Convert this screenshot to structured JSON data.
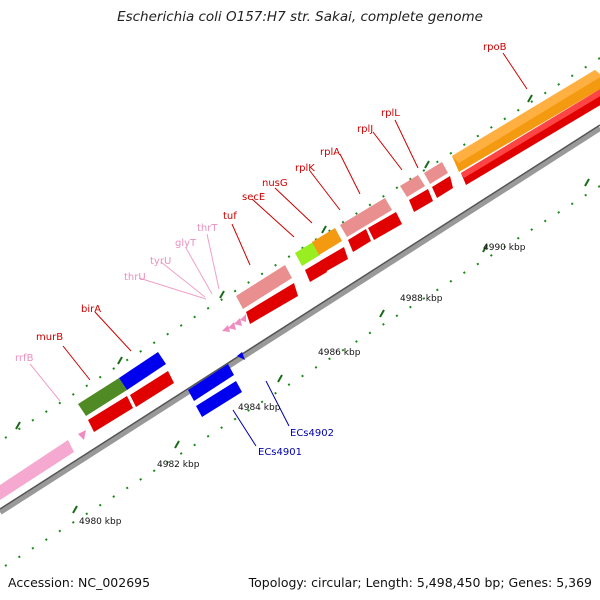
{
  "title": "Escherichia coli O157:H7 str. Sakai, complete genome",
  "footer": {
    "accession": "Accession: NC_002695",
    "stats": "Topology: circular; Length: 5,498,450 bp; Genes: 5,369"
  },
  "ticks": [
    "4980 kbp",
    "4982 kbp",
    "4984 kbp",
    "4986 kbp",
    "4988 kbp",
    "4990 kbp"
  ],
  "genes": [
    {
      "name": "rrfB",
      "color": "#e8a0c8"
    },
    {
      "name": "murB",
      "color": "#cc0000"
    },
    {
      "name": "birA",
      "color": "#cc0000"
    },
    {
      "name": "thrU",
      "color": "#e8a0c8"
    },
    {
      "name": "tyrU",
      "color": "#e8a0c8"
    },
    {
      "name": "glyT",
      "color": "#e8a0c8"
    },
    {
      "name": "thrT",
      "color": "#e8a0c8"
    },
    {
      "name": "tuf",
      "color": "#cc0000"
    },
    {
      "name": "secE",
      "color": "#cc0000"
    },
    {
      "name": "nusG",
      "color": "#cc0000"
    },
    {
      "name": "rplK",
      "color": "#cc0000"
    },
    {
      "name": "rplA",
      "color": "#cc0000"
    },
    {
      "name": "rplJ",
      "color": "#cc0000"
    },
    {
      "name": "rplL",
      "color": "#cc0000"
    },
    {
      "name": "rpoB",
      "color": "#cc0000"
    },
    {
      "name": "ECs4902",
      "color": "#0000aa"
    },
    {
      "name": "ECs4901",
      "color": "#0000aa"
    }
  ]
}
